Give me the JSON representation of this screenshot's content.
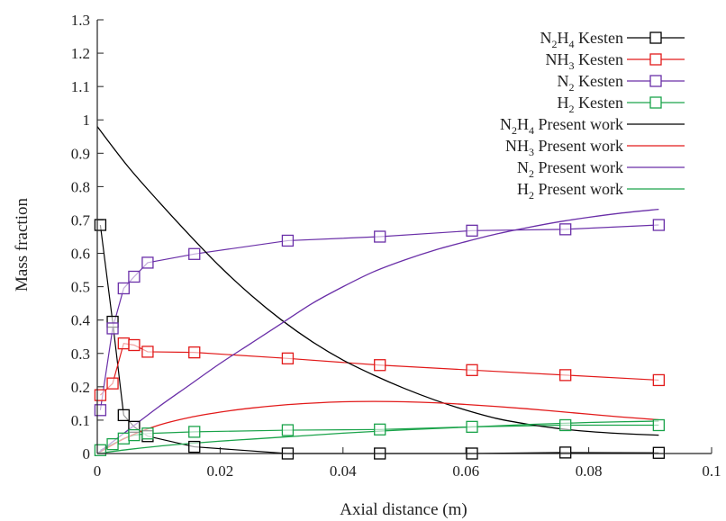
{
  "chart_data": {
    "type": "line",
    "xlabel": "Axial distance (m)",
    "ylabel": "Mass fraction",
    "xlim": [
      0,
      0.1
    ],
    "ylim": [
      0,
      1.3
    ],
    "x_ticks": [
      "0",
      "0.02",
      "0.04",
      "0.06",
      "0.08",
      "0.1"
    ],
    "y_ticks": [
      "0",
      "0.1",
      "0.2",
      "0.3",
      "0.4",
      "0.5",
      "0.6",
      "0.7",
      "0.8",
      "0.9",
      "1",
      "1.1",
      "1.2",
      "1.3"
    ],
    "legend_position": "top-right",
    "series": [
      {
        "name": "N2H4 Kesten",
        "color": "#000000",
        "marker": "square",
        "x": [
          0.0005,
          0.0025,
          0.0043,
          0.006,
          0.0082,
          0.0158,
          0.031,
          0.046,
          0.061,
          0.0762,
          0.0914
        ],
        "y": [
          0.685,
          0.395,
          0.115,
          0.08,
          0.052,
          0.02,
          0.0,
          0.0,
          0.0,
          0.003,
          0.002
        ]
      },
      {
        "name": "NH3 Kesten",
        "color": "#e21a1a",
        "marker": "square",
        "x": [
          0.0005,
          0.0025,
          0.0043,
          0.006,
          0.0082,
          0.0158,
          0.031,
          0.046,
          0.061,
          0.0762,
          0.0914
        ],
        "y": [
          0.175,
          0.21,
          0.33,
          0.325,
          0.305,
          0.303,
          0.285,
          0.265,
          0.25,
          0.235,
          0.22
        ]
      },
      {
        "name": "N2 Kesten",
        "color": "#6a2fa8",
        "marker": "square",
        "x": [
          0.0005,
          0.0025,
          0.0043,
          0.006,
          0.0082,
          0.0158,
          0.031,
          0.046,
          0.061,
          0.0762,
          0.0914
        ],
        "y": [
          0.13,
          0.375,
          0.495,
          0.53,
          0.572,
          0.598,
          0.638,
          0.65,
          0.668,
          0.672,
          0.685
        ]
      },
      {
        "name": "H2 Kesten",
        "color": "#1aa34a",
        "marker": "square",
        "x": [
          0.0005,
          0.0025,
          0.0043,
          0.006,
          0.0082,
          0.0158,
          0.031,
          0.046,
          0.061,
          0.0762,
          0.0914
        ],
        "y": [
          0.01,
          0.028,
          0.045,
          0.055,
          0.06,
          0.065,
          0.07,
          0.072,
          0.08,
          0.085,
          0.085
        ]
      },
      {
        "name": "N2H4 Present work",
        "color": "#000000",
        "marker": "none",
        "x": [
          0,
          0.005,
          0.01,
          0.015,
          0.02,
          0.025,
          0.03,
          0.035,
          0.04,
          0.045,
          0.05,
          0.055,
          0.06,
          0.065,
          0.07,
          0.075,
          0.08,
          0.085,
          0.0914
        ],
        "y": [
          0.98,
          0.86,
          0.755,
          0.655,
          0.56,
          0.475,
          0.4,
          0.335,
          0.28,
          0.235,
          0.195,
          0.16,
          0.13,
          0.105,
          0.088,
          0.075,
          0.066,
          0.06,
          0.055
        ]
      },
      {
        "name": "NH3 Present work",
        "color": "#e21a1a",
        "marker": "none",
        "x": [
          0,
          0.005,
          0.01,
          0.015,
          0.02,
          0.025,
          0.03,
          0.035,
          0.04,
          0.045,
          0.05,
          0.055,
          0.06,
          0.065,
          0.07,
          0.075,
          0.08,
          0.085,
          0.0914
        ],
        "y": [
          0.0,
          0.05,
          0.085,
          0.108,
          0.124,
          0.136,
          0.145,
          0.151,
          0.155,
          0.156,
          0.155,
          0.152,
          0.147,
          0.141,
          0.134,
          0.126,
          0.118,
          0.11,
          0.101
        ]
      },
      {
        "name": "N2 Present work",
        "color": "#6a2fa8",
        "marker": "none",
        "x": [
          0,
          0.005,
          0.01,
          0.015,
          0.02,
          0.025,
          0.03,
          0.035,
          0.04,
          0.045,
          0.05,
          0.055,
          0.06,
          0.065,
          0.07,
          0.075,
          0.08,
          0.085,
          0.0914
        ],
        "y": [
          0.0,
          0.07,
          0.14,
          0.205,
          0.27,
          0.33,
          0.39,
          0.45,
          0.5,
          0.545,
          0.58,
          0.61,
          0.635,
          0.658,
          0.677,
          0.694,
          0.708,
          0.72,
          0.732
        ]
      },
      {
        "name": "H2 Present work",
        "color": "#1aa34a",
        "marker": "none",
        "x": [
          0,
          0.005,
          0.01,
          0.015,
          0.02,
          0.025,
          0.03,
          0.035,
          0.04,
          0.045,
          0.05,
          0.055,
          0.06,
          0.065,
          0.07,
          0.075,
          0.08,
          0.085,
          0.0914
        ],
        "y": [
          0.0,
          0.012,
          0.022,
          0.03,
          0.037,
          0.043,
          0.049,
          0.055,
          0.061,
          0.066,
          0.071,
          0.075,
          0.079,
          0.083,
          0.087,
          0.09,
          0.093,
          0.095,
          0.097
        ]
      }
    ],
    "legend": [
      {
        "label": "N2H4 Kesten",
        "parts": [
          "N",
          "2",
          "H",
          "4",
          " Kesten"
        ],
        "style": "marker"
      },
      {
        "label": "NH3 Kesten",
        "parts": [
          "NH",
          "3",
          " Kesten"
        ],
        "style": "marker"
      },
      {
        "label": "N2 Kesten",
        "parts": [
          "N",
          "2",
          " Kesten"
        ],
        "style": "marker"
      },
      {
        "label": "H2 Kesten",
        "parts": [
          "H",
          "2",
          " Kesten"
        ],
        "style": "marker"
      },
      {
        "label": "N2H4 Present work",
        "parts": [
          "N",
          "2",
          "H",
          "4",
          " Present work"
        ],
        "style": "line"
      },
      {
        "label": "NH3 Present work",
        "parts": [
          "NH",
          "3",
          " Present work"
        ],
        "style": "line"
      },
      {
        "label": "N2 Present work",
        "parts": [
          "N",
          "2",
          " Present work"
        ],
        "style": "line"
      },
      {
        "label": "H2 Present work",
        "parts": [
          "H",
          "2",
          " Present work"
        ],
        "style": "line"
      }
    ]
  }
}
